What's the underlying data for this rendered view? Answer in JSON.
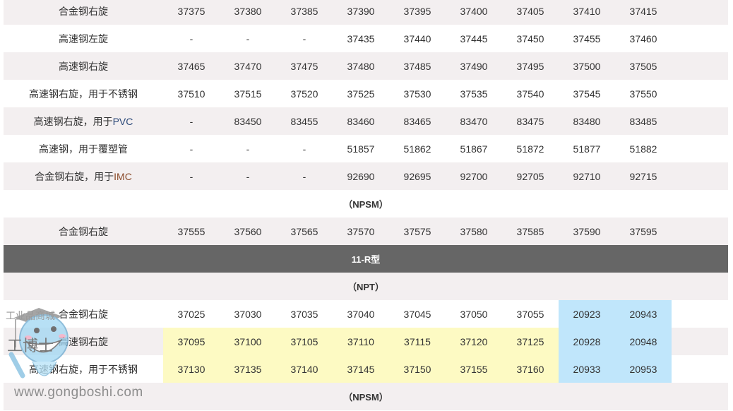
{
  "rows_top": [
    {
      "label": "合金钢右旋",
      "values": [
        "37375",
        "37380",
        "37385",
        "37390",
        "37395",
        "37400",
        "37405",
        "37410",
        "37415"
      ]
    },
    {
      "label": "高速钢左旋",
      "values": [
        "-",
        "-",
        "-",
        "37435",
        "37440",
        "37445",
        "37450",
        "37455",
        "37460"
      ]
    },
    {
      "label": "高速钢右旋",
      "values": [
        "37465",
        "37470",
        "37475",
        "37480",
        "37485",
        "37490",
        "37495",
        "37500",
        "37505"
      ]
    },
    {
      "label": "高速钢右旋，用于不锈钢",
      "values": [
        "37510",
        "37515",
        "37520",
        "37525",
        "37530",
        "37535",
        "37540",
        "37545",
        "37550"
      ]
    },
    {
      "label_prefix": "高速钢右旋，用于",
      "label_suffix": "PVC",
      "values": [
        "-",
        "83450",
        "83455",
        "83460",
        "83465",
        "83470",
        "83475",
        "83480",
        "83485"
      ]
    },
    {
      "label": "高速钢，用于覆塑管",
      "values": [
        "-",
        "-",
        "-",
        "51857",
        "51862",
        "51867",
        "51872",
        "51877",
        "51882"
      ]
    },
    {
      "label_prefix": "合金钢右旋，用于",
      "label_suffix": "IMC",
      "values": [
        "-",
        "-",
        "-",
        "92690",
        "92695",
        "92700",
        "92705",
        "92710",
        "92715"
      ]
    }
  ],
  "section_npsm_1": "（NPSM）",
  "row_npsm_1": {
    "label": "合金钢右旋",
    "values": [
      "37555",
      "37560",
      "37565",
      "37570",
      "37575",
      "37580",
      "37585",
      "37590",
      "37595"
    ]
  },
  "group_header": "11-R型",
  "section_npt": "（NPT）",
  "rows_npt": [
    {
      "label": "合金钢右旋",
      "values": [
        "37025",
        "37030",
        "37035",
        "37040",
        "37045",
        "37050",
        "37055",
        "20923",
        "20943"
      ]
    },
    {
      "label": "高速钢右旋",
      "values": [
        "37095",
        "37100",
        "37105",
        "37110",
        "37115",
        "37120",
        "37125",
        "20928",
        "20948"
      ]
    },
    {
      "label": "高速钢右旋，用于不锈钢",
      "values": [
        "37130",
        "37135",
        "37140",
        "37145",
        "37150",
        "37155",
        "37160",
        "20933",
        "20953"
      ]
    }
  ],
  "section_npsm_2": "（NPSM）",
  "watermark": {
    "name": "工博士",
    "subtitle": "工业品商城",
    "url": "www.gongboshi.com"
  },
  "colors": {
    "row_alt": "#f3eff0",
    "header_dark": "#666666",
    "highlight_yellow": "#fdfac3",
    "highlight_blue": "#c0e6fb"
  }
}
